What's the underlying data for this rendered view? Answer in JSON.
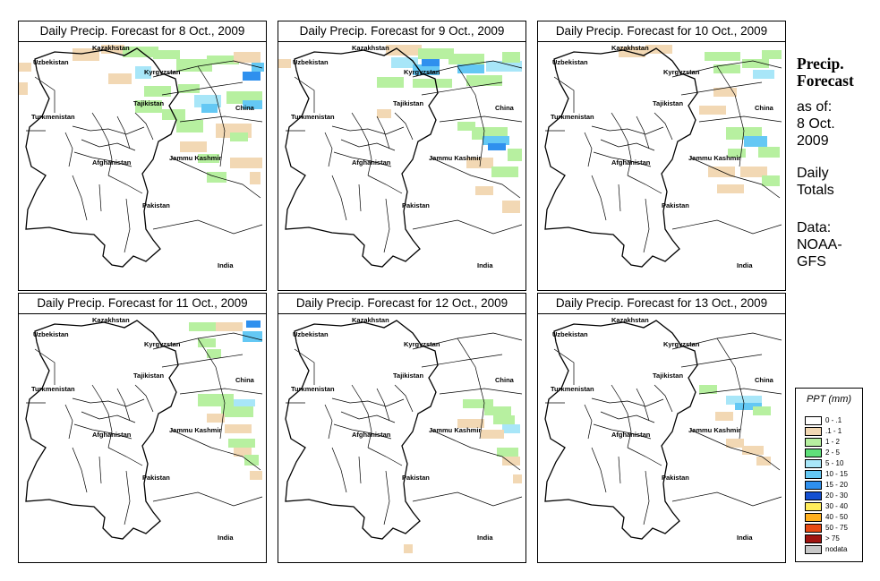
{
  "panels": [
    {
      "title": "Daily Precip. Forecast for  8 Oct., 2009"
    },
    {
      "title": "Daily Precip. Forecast for  9 Oct., 2009"
    },
    {
      "title": "Daily Precip. Forecast for  10 Oct., 2009"
    },
    {
      "title": "Daily Precip. Forecast for  11 Oct., 2009"
    },
    {
      "title": "Daily Precip. Forecast for  12 Oct., 2009"
    },
    {
      "title": "Daily Precip. Forecast for  13 Oct., 2009"
    }
  ],
  "map_labels": {
    "kazakhstan": "Kazakhstan",
    "uzbekistan": "Uzbekistan",
    "kyrgyzstan": "Kyrgyzstan",
    "tajikistan": "Tajikistan",
    "turkmenistan": "Turkmenistan",
    "china": "China",
    "afghanistan": "Afghanistan",
    "jammu_kashmir": "Jammu Kashmir",
    "pakistan": "Pakistan",
    "india": "India"
  },
  "sidebar": {
    "title_line1": "Precip.",
    "title_line2": "Forecast",
    "asof_line1": "as of:",
    "asof_line2": "8 Oct.",
    "asof_line3": "2009",
    "totals_line1": "Daily",
    "totals_line2": "Totals",
    "data_line1": "Data:",
    "data_line2": "NOAA-",
    "data_line3": "GFS"
  },
  "legend": {
    "title": "PPT (mm)",
    "items": [
      {
        "label": "0 - .1",
        "color": "#ffffff"
      },
      {
        "label": ".1 - 1",
        "color": "#f2d8b4"
      },
      {
        "label": "1 - 2",
        "color": "#b7f0a0"
      },
      {
        "label": "2 - 5",
        "color": "#5fe07a"
      },
      {
        "label": "5 - 10",
        "color": "#a8e6f8"
      },
      {
        "label": "10 - 15",
        "color": "#64c8f4"
      },
      {
        "label": "15 - 20",
        "color": "#2f90ee"
      },
      {
        "label": "20 - 30",
        "color": "#1450d2"
      },
      {
        "label": "30 - 40",
        "color": "#ffec5a"
      },
      {
        "label": "40 - 50",
        "color": "#ffb01e"
      },
      {
        "label": "50 - 75",
        "color": "#e84a14"
      },
      {
        "label": "> 75",
        "color": "#a01410"
      },
      {
        "label": "nodata",
        "color": "#c8c8c8"
      }
    ]
  }
}
